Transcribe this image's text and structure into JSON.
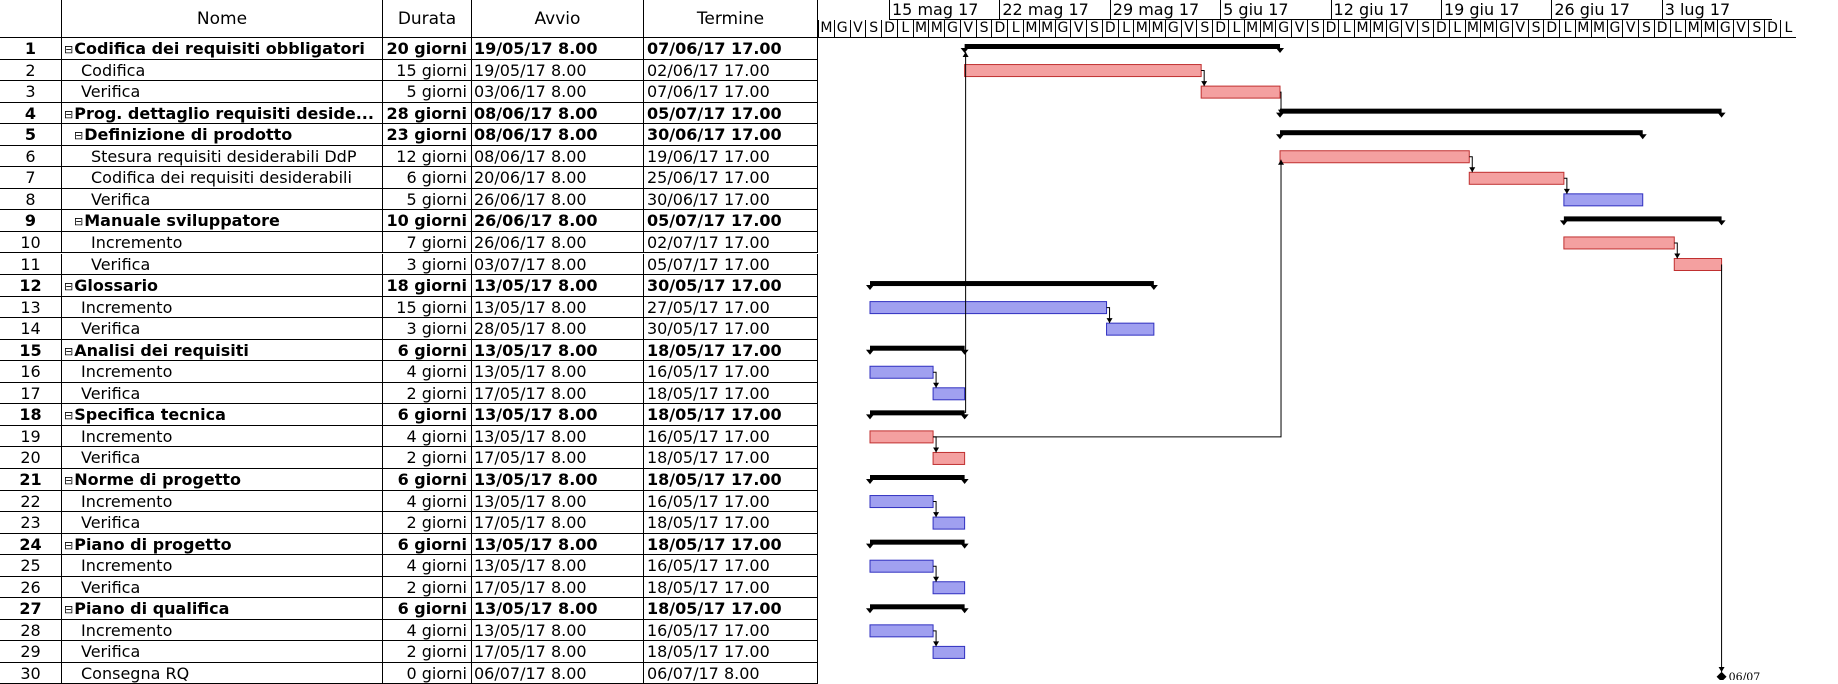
{
  "columns": {
    "id": "",
    "name": "Nome",
    "duration": "Durata",
    "start": "Avvio",
    "end": "Termine"
  },
  "weeks": [
    "15 mag 17",
    "22 mag 17",
    "29 mag 17",
    "5 giu 17",
    "12 giu 17",
    "19 giu 17",
    "26 giu 17",
    "3 lug 17"
  ],
  "day_letters": [
    "M",
    "G",
    "V",
    "S",
    "D",
    "L",
    "M",
    "M",
    "G",
    "V",
    "S",
    "D",
    "L",
    "M",
    "M",
    "G",
    "V",
    "S",
    "D",
    "L",
    "M",
    "M",
    "G",
    "V",
    "S",
    "D",
    "L",
    "M",
    "M",
    "G",
    "V",
    "S",
    "D",
    "L",
    "M",
    "M",
    "G",
    "V",
    "S",
    "D",
    "L",
    "M",
    "M",
    "G",
    "V",
    "S",
    "D",
    "L",
    "M",
    "M",
    "G",
    "V",
    "S",
    "D",
    "L",
    "M",
    "M",
    "G",
    "V",
    "S",
    "D",
    "L"
  ],
  "colors": {
    "critical": "#f4a0a0",
    "critical_border": "#c03030",
    "normal": "#a0a0f0",
    "normal_border": "#3030c0",
    "summary": "#000000"
  },
  "tasks": [
    {
      "id": "1",
      "name": "Codifica dei requisiti obbligatori",
      "duration": "20 giorni",
      "start": "19/05/17 8.00",
      "end": "07/06/17 17.00",
      "summary": true,
      "level": 0,
      "d0": 6,
      "d1": 26
    },
    {
      "id": "2",
      "name": "Codifica",
      "duration": "15 giorni",
      "start": "19/05/17 8.00",
      "end": "02/06/17 17.00",
      "summary": false,
      "critical": true,
      "level": 1,
      "d0": 6,
      "d1": 21
    },
    {
      "id": "3",
      "name": "Verifica",
      "duration": "5 giorni",
      "start": "03/06/17 8.00",
      "end": "07/06/17 17.00",
      "summary": false,
      "critical": true,
      "level": 1,
      "d0": 21,
      "d1": 26
    },
    {
      "id": "4",
      "name": "Prog. dettaglio requisiti deside...",
      "duration": "28 giorni",
      "start": "08/06/17 8.00",
      "end": "05/07/17 17.00",
      "summary": true,
      "level": 0,
      "d0": 26,
      "d1": 54
    },
    {
      "id": "5",
      "name": "Definizione di prodotto",
      "duration": "23 giorni",
      "start": "08/06/17 8.00",
      "end": "30/06/17 17.00",
      "summary": true,
      "level": 1,
      "d0": 26,
      "d1": 49
    },
    {
      "id": "6",
      "name": "Stesura requisiti desiderabili DdP",
      "duration": "12 giorni",
      "start": "08/06/17 8.00",
      "end": "19/06/17 17.00",
      "summary": false,
      "critical": true,
      "level": 2,
      "d0": 26,
      "d1": 38
    },
    {
      "id": "7",
      "name": "Codifica dei requisiti desiderabili",
      "duration": "6 giorni",
      "start": "20/06/17 8.00",
      "end": "25/06/17 17.00",
      "summary": false,
      "critical": true,
      "level": 2,
      "d0": 38,
      "d1": 44
    },
    {
      "id": "8",
      "name": "Verifica",
      "duration": "5 giorni",
      "start": "26/06/17 8.00",
      "end": "30/06/17 17.00",
      "summary": false,
      "critical": false,
      "level": 2,
      "d0": 44,
      "d1": 49
    },
    {
      "id": "9",
      "name": "Manuale sviluppatore",
      "duration": "10 giorni",
      "start": "26/06/17 8.00",
      "end": "05/07/17 17.00",
      "summary": true,
      "level": 1,
      "d0": 44,
      "d1": 54
    },
    {
      "id": "10",
      "name": "Incremento",
      "duration": "7 giorni",
      "start": "26/06/17 8.00",
      "end": "02/07/17 17.00",
      "summary": false,
      "critical": true,
      "level": 2,
      "d0": 44,
      "d1": 51
    },
    {
      "id": "11",
      "name": "Verifica",
      "duration": "3 giorni",
      "start": "03/07/17 8.00",
      "end": "05/07/17 17.00",
      "summary": false,
      "critical": true,
      "level": 2,
      "d0": 51,
      "d1": 54
    },
    {
      "id": "12",
      "name": "Glossario",
      "duration": "18 giorni",
      "start": "13/05/17 8.00",
      "end": "30/05/17 17.00",
      "summary": true,
      "level": 0,
      "d0": 0,
      "d1": 18
    },
    {
      "id": "13",
      "name": "Incremento",
      "duration": "15 giorni",
      "start": "13/05/17 8.00",
      "end": "27/05/17 17.00",
      "summary": false,
      "critical": false,
      "level": 1,
      "d0": 0,
      "d1": 15
    },
    {
      "id": "14",
      "name": "Verifica",
      "duration": "3 giorni",
      "start": "28/05/17 8.00",
      "end": "30/05/17 17.00",
      "summary": false,
      "critical": false,
      "level": 1,
      "d0": 15,
      "d1": 18
    },
    {
      "id": "15",
      "name": "Analisi dei requisiti",
      "duration": "6 giorni",
      "start": "13/05/17 8.00",
      "end": "18/05/17 17.00",
      "summary": true,
      "level": 0,
      "d0": 0,
      "d1": 6
    },
    {
      "id": "16",
      "name": "Incremento",
      "duration": "4 giorni",
      "start": "13/05/17 8.00",
      "end": "16/05/17 17.00",
      "summary": false,
      "critical": false,
      "level": 1,
      "d0": 0,
      "d1": 4
    },
    {
      "id": "17",
      "name": "Verifica",
      "duration": "2 giorni",
      "start": "17/05/17 8.00",
      "end": "18/05/17 17.00",
      "summary": false,
      "critical": false,
      "level": 1,
      "d0": 4,
      "d1": 6
    },
    {
      "id": "18",
      "name": "Specifica tecnica",
      "duration": "6 giorni",
      "start": "13/05/17 8.00",
      "end": "18/05/17 17.00",
      "summary": true,
      "level": 0,
      "d0": 0,
      "d1": 6
    },
    {
      "id": "19",
      "name": "Incremento",
      "duration": "4 giorni",
      "start": "13/05/17 8.00",
      "end": "16/05/17 17.00",
      "summary": false,
      "critical": true,
      "level": 1,
      "d0": 0,
      "d1": 4
    },
    {
      "id": "20",
      "name": "Verifica",
      "duration": "2 giorni",
      "start": "17/05/17 8.00",
      "end": "18/05/17 17.00",
      "summary": false,
      "critical": true,
      "level": 1,
      "d0": 4,
      "d1": 6
    },
    {
      "id": "21",
      "name": "Norme di progetto",
      "duration": "6 giorni",
      "start": "13/05/17 8.00",
      "end": "18/05/17 17.00",
      "summary": true,
      "level": 0,
      "d0": 0,
      "d1": 6
    },
    {
      "id": "22",
      "name": "Incremento",
      "duration": "4 giorni",
      "start": "13/05/17 8.00",
      "end": "16/05/17 17.00",
      "summary": false,
      "critical": false,
      "level": 1,
      "d0": 0,
      "d1": 4
    },
    {
      "id": "23",
      "name": "Verifica",
      "duration": "2 giorni",
      "start": "17/05/17 8.00",
      "end": "18/05/17 17.00",
      "summary": false,
      "critical": false,
      "level": 1,
      "d0": 4,
      "d1": 6
    },
    {
      "id": "24",
      "name": "Piano di progetto",
      "duration": "6 giorni",
      "start": "13/05/17 8.00",
      "end": "18/05/17 17.00",
      "summary": true,
      "level": 0,
      "d0": 0,
      "d1": 6
    },
    {
      "id": "25",
      "name": "Incremento",
      "duration": "4 giorni",
      "start": "13/05/17 8.00",
      "end": "16/05/17 17.00",
      "summary": false,
      "critical": false,
      "level": 1,
      "d0": 0,
      "d1": 4
    },
    {
      "id": "26",
      "name": "Verifica",
      "duration": "2 giorni",
      "start": "17/05/17 8.00",
      "end": "18/05/17 17.00",
      "summary": false,
      "critical": false,
      "level": 1,
      "d0": 4,
      "d1": 6
    },
    {
      "id": "27",
      "name": "Piano di qualifica",
      "duration": "6 giorni",
      "start": "13/05/17 8.00",
      "end": "18/05/17 17.00",
      "summary": true,
      "level": 0,
      "d0": 0,
      "d1": 6
    },
    {
      "id": "28",
      "name": "Incremento",
      "duration": "4 giorni",
      "start": "13/05/17 8.00",
      "end": "16/05/17 17.00",
      "summary": false,
      "critical": false,
      "level": 1,
      "d0": 0,
      "d1": 4
    },
    {
      "id": "29",
      "name": "Verifica",
      "duration": "2 giorni",
      "start": "17/05/17 8.00",
      "end": "18/05/17 17.00",
      "summary": false,
      "critical": false,
      "level": 1,
      "d0": 4,
      "d1": 6
    },
    {
      "id": "30",
      "name": "Consegna RQ",
      "duration": "0 giorni",
      "start": "06/07/17 8.00",
      "end": "06/07/17 8.00",
      "summary": false,
      "milestone": true,
      "level": 1,
      "d0": 54,
      "d1": 54,
      "milestone_label": "06/07"
    }
  ]
}
